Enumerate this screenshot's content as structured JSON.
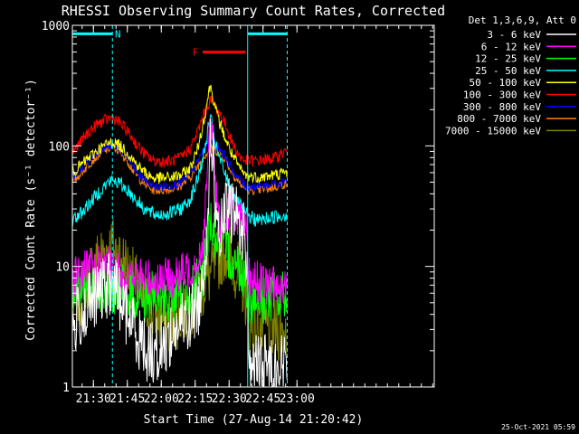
{
  "chart_data": {
    "type": "line",
    "title": "RHESSI Observing Summary Count Rates, Corrected",
    "xlabel": "Start Time (27-Aug-14 21:20:42)",
    "ylabel": "Corrected Count Rate (s⁻¹ detector⁻¹)",
    "x_unit": "minutes after 21:20:42",
    "xlim": [
      0,
      160
    ],
    "ylim": [
      1,
      1000
    ],
    "yscale": "log",
    "grid": false,
    "legend_header": "Det 1,3,6,9, Att 0",
    "legend_position": "top-right",
    "footer_timestamp": "25-Oct-2021 05:59",
    "x_ticks": [
      {
        "x": 9.3,
        "label": "21:30"
      },
      {
        "x": 24.3,
        "label": "21:45"
      },
      {
        "x": 39.3,
        "label": "22:00"
      },
      {
        "x": 54.3,
        "label": "22:15"
      },
      {
        "x": 69.3,
        "label": "22:30"
      },
      {
        "x": 84.3,
        "label": "22:45"
      },
      {
        "x": 99.3,
        "label": "23:00"
      }
    ],
    "y_ticks": [
      {
        "y": 1,
        "label": "1"
      },
      {
        "y": 10,
        "label": "10"
      },
      {
        "y": 100,
        "label": "100"
      },
      {
        "y": 1000,
        "label": "1000"
      }
    ],
    "flags": [
      {
        "label": "N",
        "color": "#00ffff",
        "x_start": 0,
        "x_end": 17.7,
        "y": 850
      },
      {
        "label": "",
        "color": "#00ffff",
        "x_start": 77.5,
        "x_end": 95,
        "y": 850
      },
      {
        "label": "F",
        "color": "#ff0000",
        "x_start": 57.6,
        "x_end": 76.5,
        "y": 600
      }
    ],
    "vlines": [
      17.7,
      95
    ],
    "vlines_solid": [
      0,
      77.5
    ],
    "series": [
      {
        "name": "3 - 6 keV",
        "color": "#ffffff",
        "x": [
          0,
          3,
          5,
          8,
          12,
          16,
          18,
          20,
          22,
          24,
          26,
          28,
          30,
          33,
          35,
          38,
          42,
          46,
          50,
          53,
          55,
          57,
          58,
          59,
          60,
          61,
          62,
          63,
          64,
          65,
          66,
          67,
          68,
          69,
          70,
          71,
          72,
          73,
          74,
          75,
          76,
          77,
          77.5,
          78,
          80,
          84,
          88,
          92,
          95
        ],
        "y": [
          3,
          4,
          4,
          5,
          6,
          7,
          7,
          6,
          5,
          4,
          3.5,
          3,
          2.5,
          2,
          2,
          2,
          2.5,
          3,
          3.5,
          4,
          4.5,
          6,
          9,
          16,
          35,
          90,
          110,
          45,
          18,
          15,
          20,
          25,
          28,
          30,
          28,
          30,
          28,
          25,
          22,
          18,
          20,
          12,
          6,
          1.5,
          1.5,
          1.5,
          1.5,
          1.5,
          1.5
        ]
      },
      {
        "name": "6 - 12 keV",
        "color": "#ff00ff",
        "x": [
          0,
          5,
          10,
          15,
          20,
          25,
          30,
          35,
          40,
          45,
          50,
          53,
          55,
          57,
          58,
          59,
          60,
          61,
          62,
          63,
          64,
          65,
          66,
          67,
          68,
          69,
          70,
          71,
          72,
          73,
          74,
          75,
          76,
          77,
          77.5,
          78,
          80,
          85,
          90,
          95
        ],
        "y": [
          8,
          9,
          10,
          10,
          9,
          8,
          8,
          8,
          8,
          8,
          9,
          10,
          11,
          13,
          18,
          35,
          80,
          160,
          120,
          60,
          30,
          22,
          24,
          26,
          28,
          29,
          30,
          29,
          28,
          27,
          25,
          22,
          20,
          18,
          10,
          8,
          8,
          7,
          7,
          7
        ]
      },
      {
        "name": "12 - 25 keV",
        "color": "#00ff00",
        "x": [
          0,
          5,
          10,
          15,
          20,
          25,
          30,
          35,
          40,
          45,
          50,
          53,
          55,
          57,
          58,
          59,
          60,
          61,
          62,
          63,
          64,
          65,
          66,
          67,
          68,
          69,
          70,
          72,
          74,
          76,
          77.5,
          78,
          80,
          85,
          90,
          95
        ],
        "y": [
          6,
          6.5,
          7,
          7,
          6.5,
          6,
          5.5,
          5.5,
          5.5,
          5.5,
          6,
          6.5,
          7,
          8,
          10,
          14,
          20,
          25,
          22,
          18,
          16,
          15,
          15,
          14,
          14,
          13,
          12,
          11,
          10,
          9,
          6,
          5.5,
          5.5,
          5.5,
          5.5,
          5.5
        ]
      },
      {
        "name": "25 - 50 keV",
        "color": "#00ffff",
        "x": [
          0,
          4,
          8,
          12,
          16,
          18,
          20,
          24,
          28,
          32,
          36,
          40,
          44,
          48,
          52,
          55,
          57,
          59,
          60,
          61,
          62,
          63,
          64,
          66,
          68,
          70,
          72,
          74,
          76,
          78,
          82,
          86,
          90,
          95
        ],
        "y": [
          24,
          28,
          34,
          42,
          50,
          52,
          50,
          44,
          36,
          30,
          27,
          27,
          28,
          30,
          36,
          50,
          70,
          100,
          140,
          170,
          140,
          110,
          90,
          70,
          55,
          45,
          38,
          32,
          28,
          26,
          24,
          25,
          26,
          27
        ]
      },
      {
        "name": "50 - 100 keV",
        "color": "#ffff00",
        "x": [
          0,
          4,
          8,
          12,
          16,
          18,
          20,
          24,
          28,
          32,
          36,
          40,
          44,
          48,
          52,
          55,
          57,
          58,
          59,
          60,
          61,
          62,
          63,
          64,
          66,
          68,
          70,
          72,
          74,
          76,
          78,
          82,
          86,
          90,
          95
        ],
        "y": [
          60,
          70,
          82,
          95,
          105,
          108,
          103,
          90,
          72,
          60,
          54,
          54,
          55,
          57,
          65,
          90,
          130,
          160,
          200,
          260,
          320,
          260,
          220,
          180,
          140,
          110,
          90,
          75,
          65,
          58,
          56,
          55,
          56,
          58,
          60
        ]
      },
      {
        "name": "100 - 300 keV",
        "color": "#ff0000",
        "x": [
          0,
          4,
          8,
          12,
          16,
          18,
          20,
          24,
          28,
          32,
          36,
          40,
          44,
          48,
          52,
          55,
          57,
          59,
          60,
          61,
          62,
          63,
          64,
          66,
          68,
          70,
          72,
          74,
          76,
          78,
          82,
          86,
          90,
          95
        ],
        "y": [
          88,
          110,
          135,
          155,
          168,
          170,
          160,
          135,
          105,
          85,
          75,
          74,
          75,
          80,
          95,
          125,
          160,
          200,
          220,
          240,
          230,
          215,
          200,
          175,
          145,
          115,
          95,
          82,
          76,
          75,
          75,
          77,
          80,
          92
        ]
      },
      {
        "name": "300 - 800 keV",
        "color": "#0000ff",
        "x": [
          0,
          4,
          8,
          12,
          16,
          18,
          20,
          24,
          28,
          32,
          36,
          40,
          44,
          48,
          52,
          55,
          57,
          59,
          60,
          61,
          62,
          63,
          64,
          66,
          68,
          70,
          72,
          74,
          76,
          78,
          82,
          86,
          90,
          95
        ],
        "y": [
          55,
          65,
          78,
          92,
          100,
          102,
          97,
          82,
          62,
          52,
          46,
          46,
          47,
          50,
          58,
          72,
          85,
          100,
          110,
          115,
          110,
          105,
          100,
          92,
          80,
          67,
          58,
          52,
          48,
          46,
          46,
          47,
          49,
          53
        ]
      },
      {
        "name": "800 - 7000 keV",
        "color": "#ff8000",
        "x": [
          0,
          4,
          8,
          12,
          16,
          18,
          20,
          24,
          28,
          32,
          36,
          40,
          44,
          48,
          52,
          55,
          57,
          59,
          60,
          61,
          62,
          63,
          64,
          66,
          68,
          70,
          72,
          74,
          76,
          78,
          82,
          86,
          90,
          95
        ],
        "y": [
          50,
          60,
          73,
          86,
          95,
          97,
          92,
          77,
          58,
          48,
          43,
          43,
          44,
          47,
          55,
          66,
          76,
          86,
          90,
          92,
          93,
          92,
          90,
          85,
          75,
          63,
          55,
          49,
          45,
          43,
          43,
          44,
          46,
          49
        ]
      },
      {
        "name": "7000 - 15000 keV",
        "color": "#808000",
        "x": [
          0,
          4,
          8,
          12,
          16,
          18,
          20,
          24,
          28,
          32,
          36,
          40,
          44,
          48,
          52,
          55,
          57,
          60,
          63,
          66,
          68,
          70,
          72,
          74,
          76,
          77.5,
          78,
          82,
          86,
          90,
          95
        ],
        "y": [
          4,
          6,
          9,
          12,
          14,
          14.5,
          13,
          10,
          7,
          5,
          4,
          3.5,
          3.5,
          4,
          4.5,
          5.5,
          6.5,
          8,
          10,
          13,
          14,
          12,
          10,
          8,
          6.5,
          5,
          3,
          3,
          3,
          3,
          3
        ]
      }
    ]
  }
}
